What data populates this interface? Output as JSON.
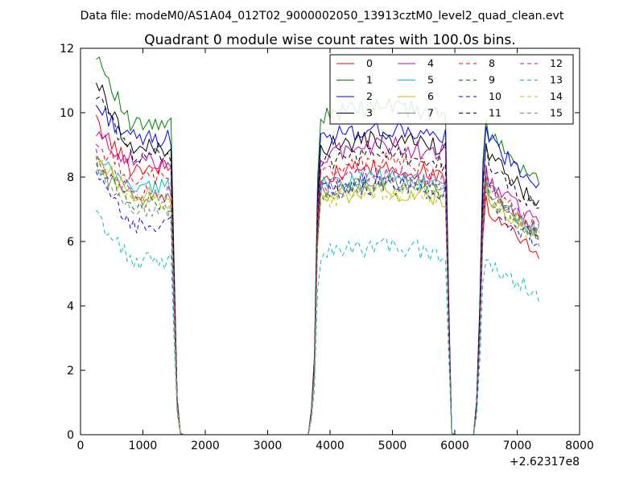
{
  "chart_data": {
    "type": "line",
    "suptitle": "Data file: modeM0/AS1A04_012T02_9000002050_13913cztM0_level2_quad_clean.evt",
    "title": "Quadrant 0 module wise count rates with 100.0s bins.",
    "xlabel": "",
    "ylabel": "",
    "x_offset_label": "+2.62317e8",
    "xlim": [
      0,
      8000
    ],
    "ylim": [
      0,
      12
    ],
    "xticks": [
      0,
      1000,
      2000,
      3000,
      4000,
      5000,
      6000,
      7000,
      8000
    ],
    "yticks": [
      0,
      2,
      4,
      6,
      8,
      10,
      12
    ],
    "x_tick_labels": [
      "0",
      "1000",
      "2000",
      "3000",
      "4000",
      "5000",
      "6000",
      "7000",
      "8000"
    ],
    "y_tick_labels": [
      "0",
      "2",
      "4",
      "6",
      "8",
      "10",
      "12"
    ],
    "legend_position": "top-right",
    "legend_columns": 4,
    "grid": false,
    "segments": [
      {
        "x_start": 250,
        "x_end": 1450,
        "step": 50
      },
      {
        "x_start": 3850,
        "x_end": 5850,
        "step": 50
      },
      {
        "x_start": 6550,
        "x_end": 7350,
        "step": 50
      }
    ],
    "gaps": [
      {
        "drop_x": [
          1500,
          1550,
          1600,
          1650
        ],
        "zero_until": 3650,
        "rise_x": [
          3700,
          3750,
          3800
        ]
      },
      {
        "drop_x": [
          5900,
          5950,
          6000
        ],
        "zero_until": 6300,
        "rise_x": [
          6350,
          6400,
          6450,
          6500
        ]
      }
    ],
    "series": [
      {
        "name": "0",
        "color": "#ff0000",
        "style": "solid",
        "levels": [
          9.7,
          8.3,
          8.0,
          6.5
        ]
      },
      {
        "name": "1",
        "color": "#008000",
        "style": "solid",
        "levels": [
          11.9,
          9.6,
          9.9,
          8.9
        ]
      },
      {
        "name": "2",
        "color": "#0000ff",
        "style": "solid",
        "levels": [
          10.2,
          9.2,
          9.2,
          8.7
        ]
      },
      {
        "name": "3",
        "color": "#000000",
        "style": "solid",
        "levels": [
          11.0,
          8.9,
          8.9,
          8.2
        ]
      },
      {
        "name": "4",
        "color": "#bf00bf",
        "style": "solid",
        "levels": [
          9.3,
          8.5,
          8.7,
          7.5
        ]
      },
      {
        "name": "5",
        "color": "#00bfbf",
        "style": "solid",
        "levels": [
          8.5,
          7.7,
          7.7,
          7.2
        ]
      },
      {
        "name": "6",
        "color": "#bfbf00",
        "style": "solid",
        "levels": [
          8.6,
          7.5,
          7.3,
          7.0
        ]
      },
      {
        "name": "7",
        "color": "#808080",
        "style": "solid",
        "levels": [
          8.3,
          7.4,
          7.6,
          7.1
        ]
      },
      {
        "name": "8",
        "color": "#ff0000",
        "style": "dashed",
        "levels": [
          9.0,
          8.0,
          8.2,
          7.3
        ]
      },
      {
        "name": "9",
        "color": "#008000",
        "style": "dashed",
        "levels": [
          8.4,
          7.2,
          7.5,
          7.0
        ]
      },
      {
        "name": "10",
        "color": "#0000ff",
        "style": "dashed",
        "levels": [
          8.0,
          6.5,
          7.5,
          6.8
        ]
      },
      {
        "name": "11",
        "color": "#000000",
        "style": "dashed",
        "levels": [
          10.6,
          8.7,
          8.4,
          8.0
        ]
      },
      {
        "name": "12",
        "color": "#bf00bf",
        "style": "dashed",
        "levels": [
          8.6,
          7.5,
          7.8,
          7.2
        ]
      },
      {
        "name": "13",
        "color": "#00bfbf",
        "style": "dashed",
        "levels": [
          6.8,
          5.4,
          5.6,
          5.0
        ]
      },
      {
        "name": "14",
        "color": "#bfbf00",
        "style": "dashed",
        "levels": [
          8.7,
          7.2,
          7.3,
          6.9
        ]
      },
      {
        "name": "15",
        "color": "#808080",
        "style": "dashed",
        "levels": [
          8.2,
          7.0,
          7.6,
          7.0
        ]
      }
    ]
  }
}
